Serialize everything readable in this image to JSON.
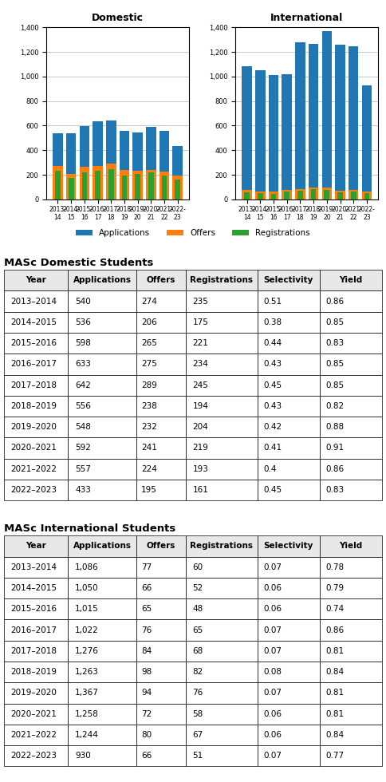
{
  "chart_data": [
    {
      "type": "bar",
      "title": "Domestic",
      "categories": [
        "2013-\n14",
        "2014-\n15",
        "2015-\n16",
        "2016-\n17",
        "2017-\n18",
        "2018-\n19",
        "2019-\n20",
        "2020-\n21",
        "2021-\n22",
        "2022-\n23"
      ],
      "series": [
        {
          "name": "Applications",
          "values": [
            540,
            536,
            598,
            633,
            642,
            556,
            548,
            592,
            557,
            433
          ]
        },
        {
          "name": "Offers",
          "values": [
            274,
            206,
            265,
            275,
            289,
            238,
            232,
            241,
            224,
            195
          ]
        },
        {
          "name": "Registrations",
          "values": [
            235,
            175,
            221,
            234,
            245,
            194,
            204,
            219,
            193,
            161
          ]
        }
      ],
      "stacked": false,
      "ylim": [
        0,
        1400
      ],
      "yticks": [
        0,
        200,
        400,
        600,
        800,
        {
          "value": 1000,
          "label": "1,000"
        },
        {
          "value": 1200,
          "label": "1,200"
        },
        {
          "value": 1400,
          "label": "1,400"
        }
      ],
      "grid": true,
      "legend": "lower center"
    },
    {
      "type": "bar",
      "title": "International",
      "categories": [
        "2013-\n14",
        "2014-\n15",
        "2015-\n16",
        "2016-\n17",
        "2017-\n18",
        "2018-\n19",
        "2019-\n20",
        "2020-\n21",
        "2021-\n22",
        "2022-\n23"
      ],
      "series": [
        {
          "name": "Applications",
          "values": [
            1086,
            1050,
            1015,
            1022,
            1276,
            1263,
            1367,
            1258,
            1244,
            930
          ]
        },
        {
          "name": "Offers",
          "values": [
            77,
            66,
            65,
            76,
            84,
            98,
            94,
            72,
            80,
            66
          ]
        },
        {
          "name": "Registrations",
          "values": [
            60,
            52,
            48,
            65,
            68,
            82,
            76,
            58,
            67,
            51
          ]
        }
      ],
      "stacked": false,
      "ylim": [
        0,
        1400
      ],
      "yticks": [
        0,
        200,
        400,
        600,
        800,
        {
          "value": 1000,
          "label": "1,000"
        },
        {
          "value": 1200,
          "label": "1,200"
        },
        {
          "value": 1400,
          "label": "1,400"
        }
      ],
      "grid": true
    },
    {
      "type": "table",
      "title": "MASc Domestic Students",
      "columns": [
        "Year",
        "Applications",
        "Offers",
        "Registrations",
        "Selectivity",
        "Yield"
      ],
      "rows": [
        [
          "2013–2014",
          "540",
          "274",
          "235",
          "0.51",
          "0.86"
        ],
        [
          "2014–2015",
          "536",
          "206",
          "175",
          "0.38",
          "0.85"
        ],
        [
          "2015–2016",
          "598",
          "265",
          "221",
          "0.44",
          "0.83"
        ],
        [
          "2016–2017",
          "633",
          "275",
          "234",
          "0.43",
          "0.85"
        ],
        [
          "2017–2018",
          "642",
          "289",
          "245",
          "0.45",
          "0.85"
        ],
        [
          "2018–2019",
          "556",
          "238",
          "194",
          "0.43",
          "0.82"
        ],
        [
          "2019–2020",
          "548",
          "232",
          "204",
          "0.42",
          "0.88"
        ],
        [
          "2020–2021",
          "592",
          "241",
          "219",
          "0.41",
          "0.91"
        ],
        [
          "2021–2022",
          "557",
          "224",
          "193",
          "0.4",
          "0.86"
        ],
        [
          "2022–2023",
          "433",
          "195",
          "161",
          "0.45",
          "0.83"
        ]
      ]
    },
    {
      "type": "table",
      "title": "MASc International Students",
      "columns": [
        "Year",
        "Applications",
        "Offers",
        "Registrations",
        "Selectivity",
        "Yield"
      ],
      "rows": [
        [
          "2013–2014",
          "1,086",
          "77",
          "60",
          "0.07",
          "0.78"
        ],
        [
          "2014–2015",
          "1,050",
          "66",
          "52",
          "0.06",
          "0.79"
        ],
        [
          "2015–2016",
          "1,015",
          "65",
          "48",
          "0.06",
          "0.74"
        ],
        [
          "2016–2017",
          "1,022",
          "76",
          "65",
          "0.07",
          "0.86"
        ],
        [
          "2017–2018",
          "1,276",
          "84",
          "68",
          "0.07",
          "0.81"
        ],
        [
          "2018–2019",
          "1,263",
          "98",
          "82",
          "0.08",
          "0.84"
        ],
        [
          "2019–2020",
          "1,367",
          "94",
          "76",
          "0.07",
          "0.81"
        ],
        [
          "2020–2021",
          "1,258",
          "72",
          "58",
          "0.06",
          "0.81"
        ],
        [
          "2021–2022",
          "1,244",
          "80",
          "67",
          "0.06",
          "0.84"
        ],
        [
          "2022–2023",
          "930",
          "66",
          "51",
          "0.07",
          "0.77"
        ]
      ]
    }
  ]
}
